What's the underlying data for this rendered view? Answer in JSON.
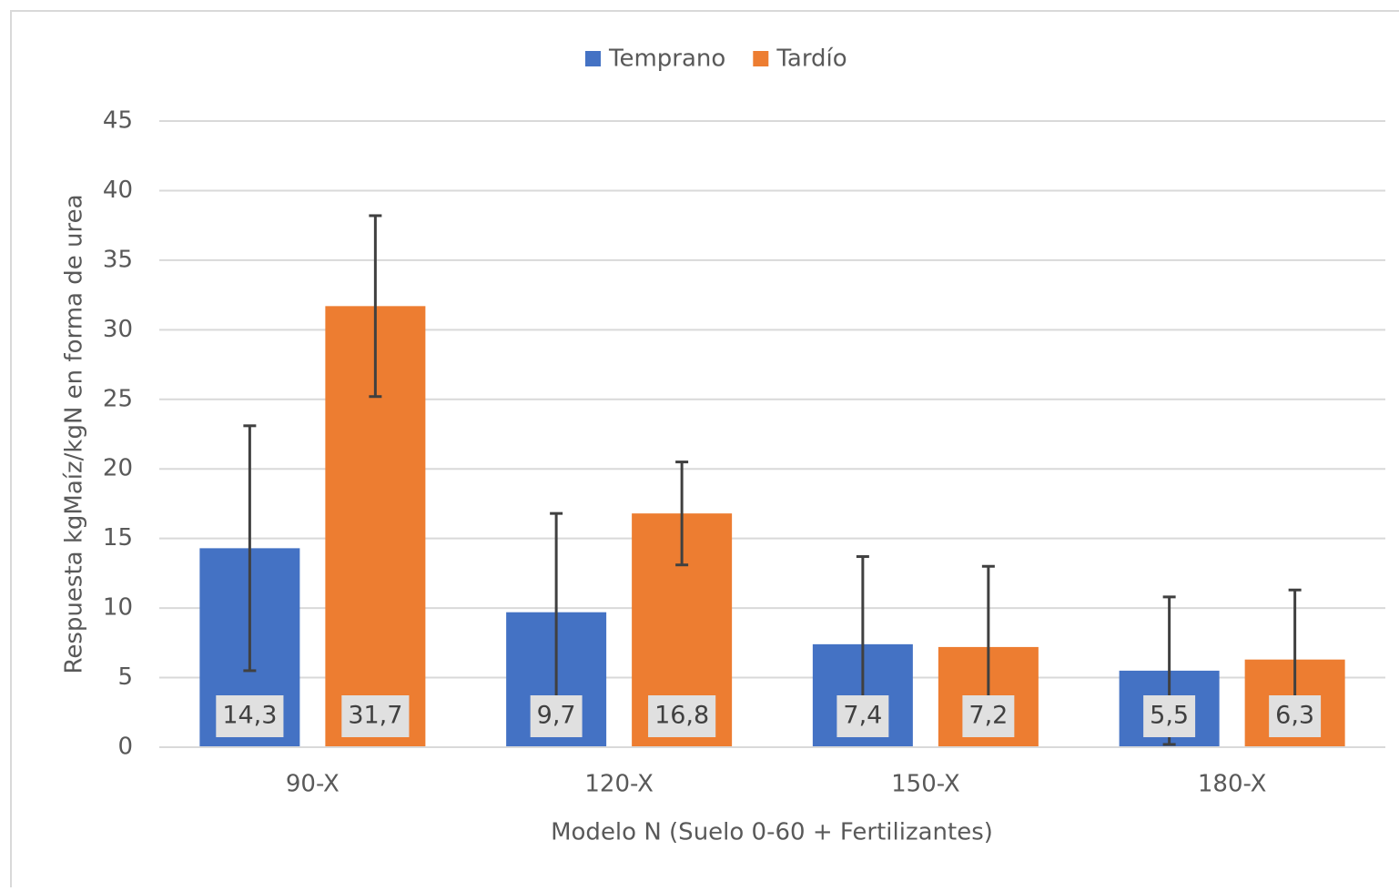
{
  "chart_data": {
    "type": "bar",
    "categories": [
      "90-X",
      "120-X",
      "150-X",
      "180-X"
    ],
    "series": [
      {
        "name": "Temprano",
        "color": "#4472c4",
        "values": [
          14.3,
          9.7,
          7.4,
          5.5
        ],
        "value_labels": [
          "14,3",
          "9,7",
          "7,4",
          "5,5"
        ],
        "errors": [
          8.8,
          7.1,
          6.3,
          5.3
        ]
      },
      {
        "name": "Tardío",
        "color": "#ed7d31",
        "values": [
          31.7,
          16.8,
          7.2,
          6.3
        ],
        "value_labels": [
          "31,7",
          "16,8",
          "7,2",
          "6,3"
        ],
        "errors": [
          6.5,
          3.7,
          5.8,
          5.0
        ]
      }
    ],
    "xlabel": "Modelo N (Suelo 0-60 + Fertilizantes)",
    "ylabel": "Respuesta kgMaíz/kgN en forma de urea",
    "ylim": [
      0,
      45
    ],
    "yticks": [
      0,
      5,
      10,
      15,
      20,
      25,
      30,
      35,
      40,
      45
    ],
    "grid": true,
    "legend": "top"
  }
}
